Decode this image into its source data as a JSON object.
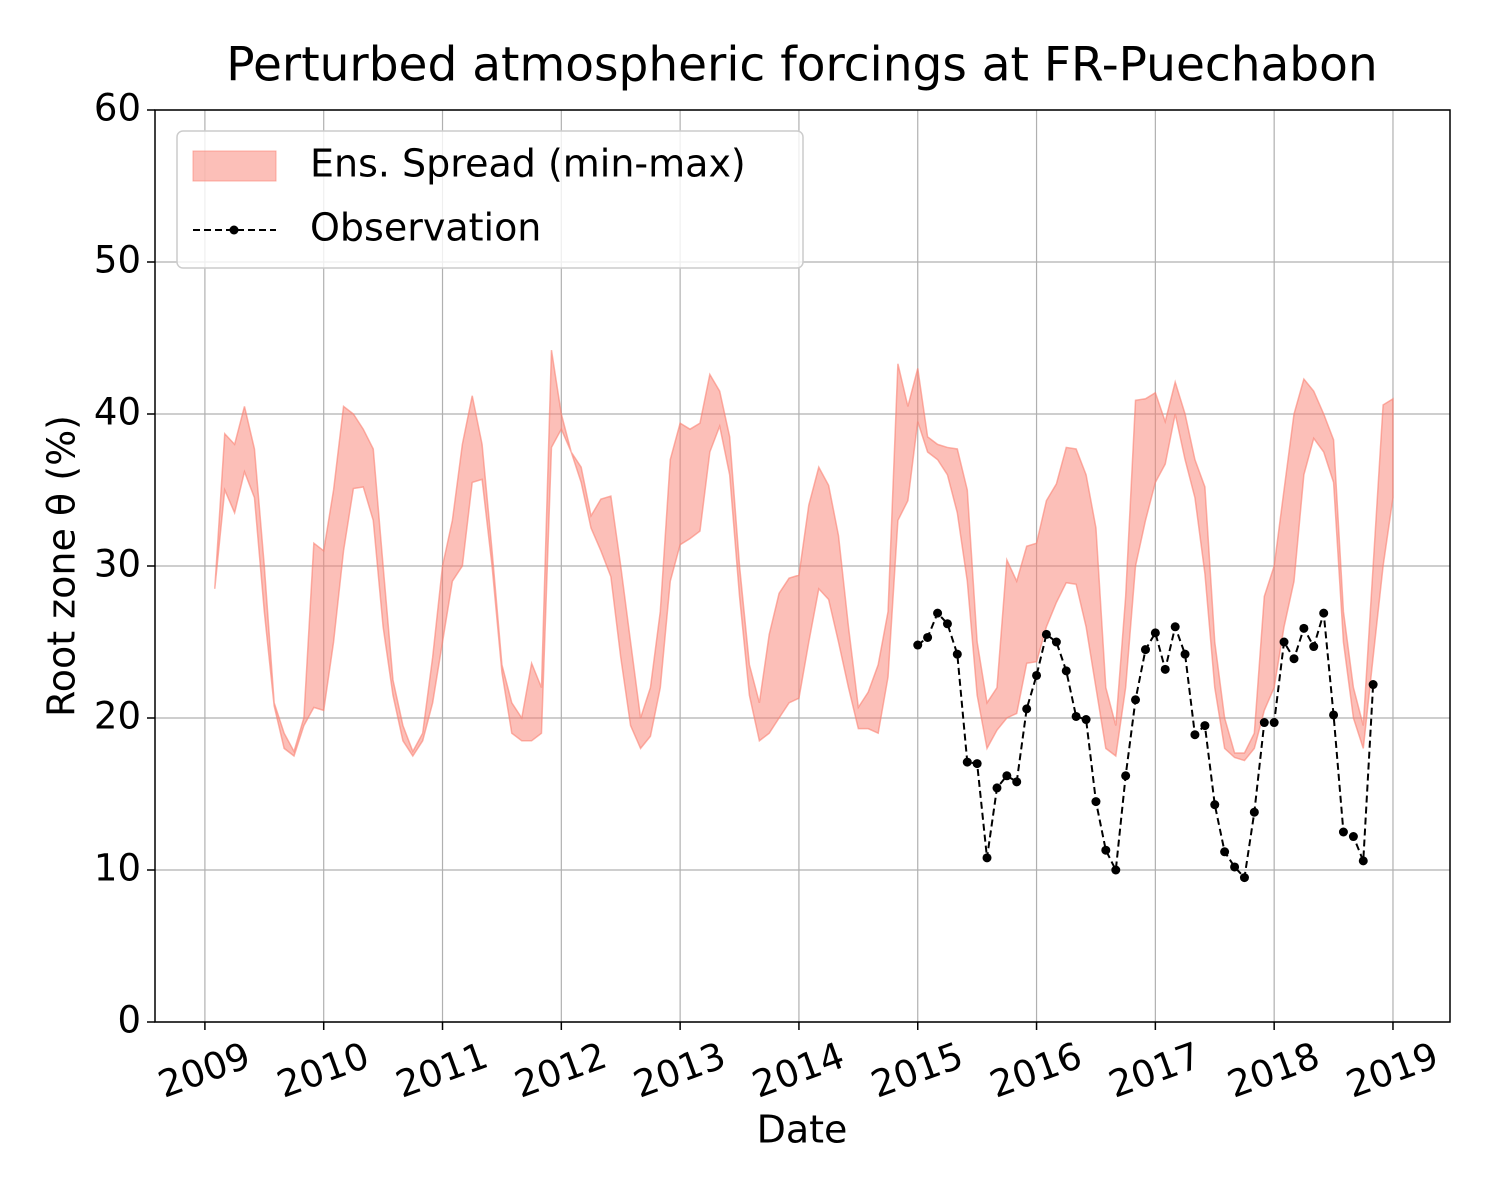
{
  "chart_data": {
    "type": "line",
    "title": "Perturbed atmospheric forcings at FR-Puechabon",
    "xlabel": "Date",
    "ylabel": "Root zone θ  (%)",
    "xlim": [
      2008.58,
      2019.48
    ],
    "ylim": [
      0,
      60
    ],
    "xticks": [
      2009,
      2010,
      2011,
      2012,
      2013,
      2014,
      2015,
      2016,
      2017,
      2018,
      2019
    ],
    "yticks": [
      0,
      10,
      20,
      30,
      40,
      50,
      60
    ],
    "grid": true,
    "legend": "upper left",
    "series": [
      {
        "name": "Ens. Spread (min-max)",
        "color": "#fa8072",
        "x": [
          2009.083,
          2009.167,
          2009.25,
          2009.333,
          2009.417,
          2009.5,
          2009.583,
          2009.667,
          2009.75,
          2009.833,
          2009.917,
          2010,
          2010.083,
          2010.167,
          2010.25,
          2010.333,
          2010.417,
          2010.5,
          2010.583,
          2010.667,
          2010.75,
          2010.833,
          2010.917,
          2011,
          2011.083,
          2011.167,
          2011.25,
          2011.333,
          2011.417,
          2011.5,
          2011.583,
          2011.667,
          2011.75,
          2011.833,
          2011.917,
          2012,
          2012.083,
          2012.167,
          2012.25,
          2012.333,
          2012.417,
          2012.5,
          2012.583,
          2012.667,
          2012.75,
          2012.833,
          2012.917,
          2013,
          2013.083,
          2013.167,
          2013.25,
          2013.333,
          2013.417,
          2013.5,
          2013.583,
          2013.667,
          2013.75,
          2013.833,
          2013.917,
          2014,
          2014.083,
          2014.167,
          2014.25,
          2014.333,
          2014.417,
          2014.5,
          2014.583,
          2014.667,
          2014.75,
          2014.833,
          2014.917,
          2015,
          2015.083,
          2015.167,
          2015.25,
          2015.333,
          2015.417,
          2015.5,
          2015.583,
          2015.667,
          2015.75,
          2015.833,
          2015.917,
          2016,
          2016.083,
          2016.167,
          2016.25,
          2016.333,
          2016.417,
          2016.5,
          2016.583,
          2016.667,
          2016.75,
          2016.833,
          2016.917,
          2017,
          2017.083,
          2017.167,
          2017.25,
          2017.333,
          2017.417,
          2017.5,
          2017.583,
          2017.667,
          2017.75,
          2017.833,
          2017.917,
          2018,
          2018.083,
          2018.167,
          2018.25,
          2018.333,
          2018.417,
          2018.5,
          2018.583,
          2018.667,
          2018.75,
          2018.833,
          2018.917,
          2019
        ],
        "upper": [
          28.5,
          38.7,
          38,
          40.5,
          37.7,
          30,
          21,
          19,
          17.8,
          20,
          31.5,
          31,
          35,
          40.5,
          40,
          39,
          37.7,
          30,
          22.5,
          19.5,
          17.8,
          19,
          24,
          30,
          33,
          38,
          41.2,
          38,
          31,
          23.5,
          21,
          20,
          23.6,
          22,
          44.2,
          40,
          37.5,
          36.5,
          33.3,
          34.4,
          34.6,
          30,
          25,
          20,
          22,
          27,
          37,
          39.4,
          39,
          39.4,
          42.6,
          41.5,
          38.5,
          30,
          23.5,
          21,
          25.5,
          28.2,
          29.2,
          29.4,
          34,
          36.5,
          35.3,
          32,
          26,
          20.7,
          21.7,
          23.5,
          27,
          43.3,
          40.5,
          43,
          38.5,
          38,
          37.8,
          37.7,
          35,
          25,
          21,
          22,
          30.4,
          29,
          31.3,
          31.5,
          34.3,
          35.4,
          37.8,
          37.7,
          36,
          32.5,
          22,
          19.5,
          28,
          40.9,
          41,
          41.4,
          39.5,
          42.1,
          40,
          37,
          35.2,
          25,
          20,
          17.7,
          17.7,
          19,
          28,
          30,
          35,
          40,
          42.3,
          41.5,
          40,
          38.3,
          27,
          22,
          19.5,
          30,
          40.6,
          41
        ],
        "lower": [
          28.5,
          35,
          33.5,
          36.2,
          34.5,
          27,
          20.8,
          18,
          17.5,
          19.5,
          20.7,
          20.5,
          25,
          31,
          35.1,
          35.2,
          33,
          26,
          21.5,
          18.5,
          17.5,
          18.5,
          21,
          25,
          29,
          30,
          35.5,
          35.7,
          30,
          23,
          19,
          18.5,
          18.5,
          19,
          37.8,
          39,
          37.5,
          35.5,
          32.5,
          31,
          29.3,
          24,
          19.5,
          18,
          18.8,
          22,
          29,
          31.4,
          31.8,
          32.3,
          37.5,
          39.2,
          36,
          28,
          21.5,
          18.5,
          19,
          20,
          21,
          21.3,
          25,
          28.5,
          27.8,
          25,
          22,
          19.3,
          19.3,
          19,
          22.7,
          33,
          34.3,
          39.5,
          37.5,
          37,
          36,
          33.5,
          29,
          21.5,
          18,
          19.2,
          20,
          20.3,
          23.6,
          23.7,
          26,
          27.6,
          28.9,
          28.8,
          26,
          22,
          18,
          17.5,
          22,
          30,
          33,
          35.5,
          36.7,
          40,
          37,
          34.5,
          29.5,
          22,
          18,
          17.4,
          17.2,
          18,
          20.5,
          22,
          26,
          29,
          36,
          38.4,
          37.5,
          35.5,
          25,
          20,
          18,
          24,
          30,
          34.5
        ]
      },
      {
        "name": "Observation",
        "color": "#000000",
        "x": [
          2015,
          2015.083,
          2015.167,
          2015.25,
          2015.333,
          2015.417,
          2015.5,
          2015.583,
          2015.667,
          2015.75,
          2015.833,
          2015.917,
          2016,
          2016.083,
          2016.167,
          2016.25,
          2016.333,
          2016.417,
          2016.5,
          2016.583,
          2016.667,
          2016.75,
          2016.833,
          2016.917,
          2017,
          2017.083,
          2017.167,
          2017.25,
          2017.333,
          2017.417,
          2017.5,
          2017.583,
          2017.667,
          2017.75,
          2017.833,
          2017.917,
          2018,
          2018.083,
          2018.167,
          2018.25,
          2018.333,
          2018.417,
          2018.5,
          2018.583,
          2018.667,
          2018.75,
          2018.833
        ],
        "values": [
          24.8,
          25.3,
          26.9,
          26.2,
          24.2,
          17.1,
          17,
          10.8,
          15.4,
          16.2,
          15.8,
          20.6,
          22.8,
          25.5,
          25,
          23.1,
          20.1,
          19.9,
          14.5,
          11.3,
          10,
          16.2,
          21.2,
          24.5,
          25.6,
          23.2,
          26,
          24.2,
          18.9,
          19.5,
          14.3,
          11.2,
          10.2,
          9.5,
          13.8,
          19.7,
          19.7,
          25,
          23.9,
          25.9,
          24.7,
          26.9,
          20.2,
          12.5,
          12.2,
          10.6,
          22.2
        ]
      }
    ]
  }
}
